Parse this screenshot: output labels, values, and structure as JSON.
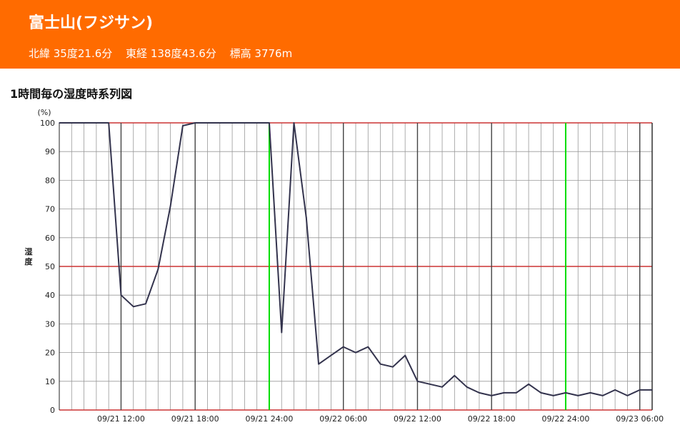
{
  "header": {
    "title": "富士山(フジサン)",
    "latitude": "北緯 35度21.6分",
    "longitude": "東経 138度43.6分",
    "elevation": "標高 3776m",
    "background_color": "#ff6b00"
  },
  "section_title": "1時間毎の湿度時系列図",
  "chart_data": {
    "type": "line",
    "title": "1時間毎の湿度時系列図",
    "ylabel": "湿度",
    "yunit": "(%)",
    "ylim": [
      0,
      100
    ],
    "y_ticks": [
      0,
      10,
      20,
      30,
      40,
      50,
      60,
      70,
      80,
      90,
      100
    ],
    "x_tick_labels": [
      "09/21 12:00",
      "09/21 18:00",
      "09/21 24:00",
      "09/22 06:00",
      "09/22 12:00",
      "09/22 18:00",
      "09/22 24:00",
      "09/23 06:00"
    ],
    "x_tick_hours": [
      12,
      18,
      24,
      30,
      36,
      42,
      48,
      54
    ],
    "x_start_label": "09/21 07:00",
    "grid": true,
    "series": [
      {
        "color": "#33334d",
        "x_hours": [
          7,
          8,
          9,
          10,
          11,
          12,
          13,
          14,
          15,
          16,
          17,
          18,
          19,
          20,
          21,
          22,
          23,
          24,
          25,
          26,
          27,
          28,
          29,
          30,
          31,
          32,
          33,
          34,
          35,
          36,
          37,
          38,
          39,
          40,
          41,
          42,
          43,
          44,
          45,
          46,
          47,
          48,
          49,
          50,
          51,
          52,
          53,
          54,
          55
        ],
        "values": [
          100,
          100,
          100,
          100,
          100,
          40,
          36,
          37,
          49,
          71,
          99,
          100,
          100,
          100,
          100,
          100,
          100,
          100,
          27,
          100,
          67,
          16,
          19,
          22,
          20,
          22,
          16,
          15,
          19,
          10,
          9,
          8,
          12,
          8,
          6,
          5,
          6,
          6,
          9,
          6,
          5,
          6,
          5,
          6,
          5,
          7,
          5,
          7,
          7
        ]
      }
    ],
    "colors": {
      "major_line": "#444444",
      "minor_line": "#999999",
      "midnight_line": "#00dd00",
      "ref_line": "#cc3333"
    }
  }
}
